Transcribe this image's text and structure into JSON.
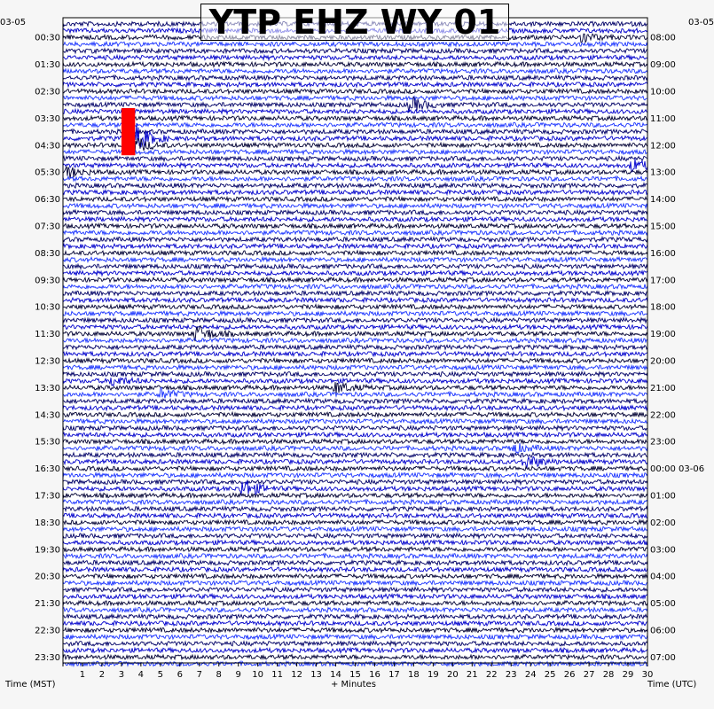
{
  "title": "YTP EHZ WY 01",
  "left_date": "03-05",
  "right_date": "03-05",
  "next_date": "03-06",
  "xlabel": "+ Minutes",
  "left_axis_label": "Time (MST)",
  "right_axis_label": "Time (UTC)",
  "colors": {
    "trace_cycle": [
      "#000066",
      "#0000cc",
      "#000033",
      "#1a33ff"
    ],
    "marker": "#ff0000",
    "frame": "#000000",
    "background": "#ffffff"
  },
  "chart_data": {
    "type": "seismogram",
    "title": "YTP EHZ WY 01",
    "xlabel": "+ Minutes",
    "x_ticks": [
      1,
      2,
      3,
      4,
      5,
      6,
      7,
      8,
      9,
      10,
      11,
      12,
      13,
      14,
      15,
      16,
      17,
      18,
      19,
      20,
      21,
      22,
      23,
      24,
      25,
      26,
      27,
      28,
      29,
      30
    ],
    "xlim": [
      0,
      30
    ],
    "rows_per_hour": 4,
    "row_count": 96,
    "left_tick_labels": [
      "00:30",
      "01:30",
      "02:30",
      "03:30",
      "04:30",
      "05:30",
      "06:30",
      "07:30",
      "08:30",
      "09:30",
      "10:30",
      "11:30",
      "12:30",
      "13:30",
      "14:30",
      "15:30",
      "16:30",
      "17:30",
      "18:30",
      "19:30",
      "20:30",
      "21:30",
      "22:30",
      "23:30"
    ],
    "right_tick_labels": [
      "08:00",
      "09:00",
      "10:00",
      "11:00",
      "12:00",
      "13:00",
      "14:00",
      "15:00",
      "16:00",
      "17:00",
      "18:00",
      "19:00",
      "20:00",
      "21:00",
      "22:00",
      "23:00",
      "00:00 03-06",
      "01:00",
      "02:00",
      "03:00",
      "04:00",
      "05:00",
      "06:00",
      "07:00"
    ],
    "events": [
      {
        "row": 2,
        "minute": 26.5,
        "amplitude": 1.6
      },
      {
        "row": 12,
        "minute": 17.8,
        "amplitude": 2.2
      },
      {
        "row": 17,
        "minute": 3.6,
        "amplitude": 5.0
      },
      {
        "row": 18,
        "minute": 3.5,
        "amplitude": 3.0
      },
      {
        "row": 22,
        "minute": 0.2,
        "amplitude": 1.6
      },
      {
        "row": 21,
        "minute": 29.2,
        "amplitude": 1.8
      },
      {
        "row": 46,
        "minute": 6.8,
        "amplitude": 2.6
      },
      {
        "row": 53,
        "minute": 2.5,
        "amplitude": 1.4
      },
      {
        "row": 54,
        "minute": 14.0,
        "amplitude": 1.6
      },
      {
        "row": 55,
        "minute": 5.0,
        "amplitude": 1.5
      },
      {
        "row": 63,
        "minute": 23.0,
        "amplitude": 1.6
      },
      {
        "row": 65,
        "minute": 23.7,
        "amplitude": 2.2
      },
      {
        "row": 69,
        "minute": 9.2,
        "amplitude": 3.0
      }
    ],
    "marker": {
      "minute_start": 3.0,
      "minute_end": 3.7,
      "row_start": 12.5,
      "row_end": 19.5
    }
  }
}
